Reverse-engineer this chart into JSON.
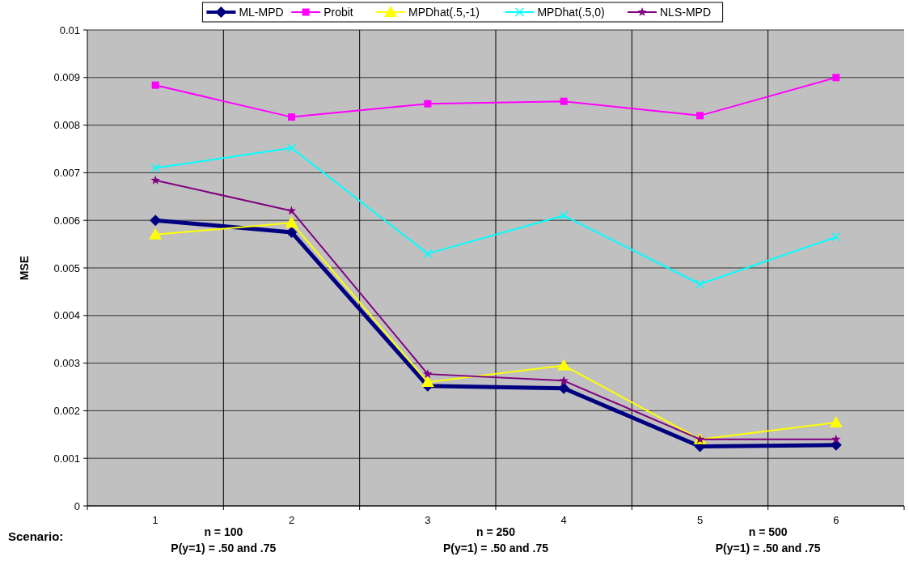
{
  "chart_data": {
    "type": "line",
    "ylabel": "MSE",
    "categories": [
      "1",
      "2",
      "3",
      "4",
      "5",
      "6"
    ],
    "ylim": [
      0,
      0.01
    ],
    "yticks": [
      {
        "value": 0,
        "label": "0"
      },
      {
        "value": 0.001,
        "label": "0.001"
      },
      {
        "value": 0.002,
        "label": "0.002"
      },
      {
        "value": 0.003,
        "label": "0.003"
      },
      {
        "value": 0.004,
        "label": "0.004"
      },
      {
        "value": 0.005,
        "label": "0.005"
      },
      {
        "value": 0.006,
        "label": "0.006"
      },
      {
        "value": 0.007,
        "label": "0.007"
      },
      {
        "value": 0.008,
        "label": "0.008"
      },
      {
        "value": 0.009,
        "label": "0.009"
      },
      {
        "value": 0.01,
        "label": "0.01"
      }
    ],
    "grid": true,
    "legend": "top",
    "line_style": "solid",
    "series": [
      {
        "name": "ML-MPD",
        "color": "#000080",
        "marker": "diamond",
        "values": [
          0.006,
          0.00575,
          0.00252,
          0.00247,
          0.00125,
          0.00128
        ]
      },
      {
        "name": "Probit",
        "color": "#ff00ff",
        "marker": "square",
        "values": [
          0.00884,
          0.00817,
          0.00845,
          0.0085,
          0.0082,
          0.009
        ]
      },
      {
        "name": "MPDhat(.5,-1)",
        "color": "#ffff00",
        "marker": "triangle",
        "values": [
          0.0057,
          0.00595,
          0.0026,
          0.00295,
          0.0014,
          0.00175
        ]
      },
      {
        "name": "MPDhat(.5,0)",
        "color": "#00ffff",
        "marker": "cross",
        "values": [
          0.0071,
          0.00752,
          0.0053,
          0.0061,
          0.00466,
          0.00565
        ]
      },
      {
        "name": "NLS-MPD",
        "color": "#800080",
        "marker": "star",
        "values": [
          0.00684,
          0.0062,
          0.00277,
          0.00263,
          0.0014,
          0.0014
        ]
      }
    ],
    "annotations": [
      "Scenario:",
      "n = 100",
      "P(y=1) = .50 and .75",
      "n = 250",
      "P(y=1) = .50 and .75",
      "n = 500",
      "P(y=1) = .50 and .75"
    ]
  }
}
